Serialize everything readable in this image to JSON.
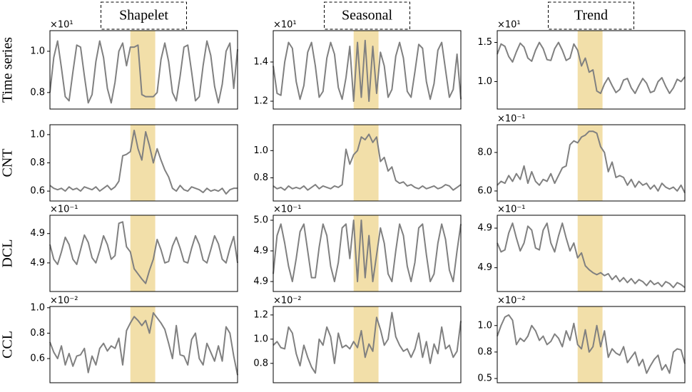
{
  "column_titles": [
    "Shapelet",
    "Seasonal",
    "Trend"
  ],
  "row_labels": [
    "Time series",
    "CNT",
    "DCL",
    "CCL"
  ],
  "chart_data": [
    {
      "type": "line",
      "offset_label": "×10¹",
      "color": "#808080",
      "highlight_color": "#f2dfa9",
      "xlim": [
        0,
        49
      ],
      "highlight": [
        21,
        27.5
      ],
      "ylim": [
        0.72,
        1.1
      ],
      "yticks": [
        0.8,
        {
          "value": 1.0,
          "label": "1.0"
        }
      ],
      "values": [
        0.8,
        0.97,
        1.05,
        0.92,
        0.78,
        0.76,
        0.9,
        1.03,
        1.02,
        0.88,
        0.75,
        0.79,
        0.95,
        1.05,
        0.97,
        0.82,
        0.75,
        0.85,
        1.0,
        1.04,
        0.93,
        1.02,
        1.02,
        1.03,
        0.79,
        0.78,
        0.78,
        0.78,
        0.8,
        0.96,
        1.04,
        0.95,
        0.8,
        0.76,
        0.88,
        1.02,
        1.03,
        0.9,
        0.76,
        0.78,
        0.93,
        1.05,
        0.98,
        0.83,
        0.75,
        0.84,
        1.0,
        1.04,
        0.82,
        1.01
      ]
    },
    {
      "type": "line",
      "offset_label": "×10¹",
      "color": "#808080",
      "highlight_color": "#f2dfa9",
      "xlim": [
        0,
        49
      ],
      "highlight": [
        21,
        27.5
      ],
      "ylim": [
        1.16,
        1.56
      ],
      "yticks": [
        1.2,
        1.4
      ],
      "values": [
        1.38,
        1.24,
        1.23,
        1.4,
        1.5,
        1.47,
        1.3,
        1.21,
        1.28,
        1.45,
        1.5,
        1.38,
        1.22,
        1.25,
        1.42,
        1.5,
        1.44,
        1.27,
        1.21,
        1.32,
        1.48,
        1.2,
        1.5,
        1.22,
        1.51,
        1.2,
        1.48,
        1.24,
        1.45,
        1.38,
        1.22,
        1.26,
        1.43,
        1.5,
        1.42,
        1.25,
        1.22,
        1.35,
        1.49,
        1.47,
        1.3,
        1.21,
        1.29,
        1.46,
        1.5,
        1.36,
        1.22,
        1.26,
        1.44,
        1.21
      ]
    },
    {
      "type": "line",
      "offset_label": "×10¹",
      "color": "#808080",
      "highlight_color": "#f2dfa9",
      "xlim": [
        0,
        49
      ],
      "highlight": [
        21,
        27.5
      ],
      "ylim": [
        0.65,
        1.65
      ],
      "yticks": [
        {
          "value": 1.0,
          "label": "1.0"
        },
        1.5
      ],
      "values": [
        1.35,
        1.48,
        1.45,
        1.32,
        1.25,
        1.38,
        1.49,
        1.44,
        1.3,
        1.26,
        1.4,
        1.5,
        1.42,
        1.28,
        1.27,
        1.42,
        1.5,
        1.4,
        1.27,
        1.3,
        1.48,
        1.4,
        1.2,
        1.3,
        1.12,
        1.15,
        0.88,
        0.85,
        0.97,
        1.05,
        0.95,
        0.86,
        0.9,
        1.02,
        1.04,
        0.92,
        0.85,
        0.95,
        1.04,
        0.98,
        0.86,
        0.88,
        1.0,
        1.05,
        0.94,
        0.85,
        0.92,
        1.03,
        1.0,
        1.06
      ]
    },
    {
      "type": "line",
      "color": "#808080",
      "highlight_color": "#f2dfa9",
      "xlim": [
        0,
        49
      ],
      "highlight": [
        21,
        27.5
      ],
      "ylim": [
        0.53,
        1.07
      ],
      "yticks": [
        0.6,
        0.8,
        {
          "value": 1.0,
          "label": "1.0"
        }
      ],
      "values": [
        0.64,
        0.62,
        0.61,
        0.62,
        0.6,
        0.63,
        0.61,
        0.62,
        0.6,
        0.63,
        0.62,
        0.61,
        0.63,
        0.6,
        0.62,
        0.64,
        0.61,
        0.63,
        0.67,
        0.85,
        0.86,
        0.88,
        1.03,
        0.9,
        0.82,
        1.02,
        0.92,
        0.8,
        0.9,
        0.82,
        0.75,
        0.7,
        0.62,
        0.6,
        0.64,
        0.61,
        0.6,
        0.63,
        0.62,
        0.61,
        0.59,
        0.62,
        0.6,
        0.61,
        0.6,
        0.62,
        0.58,
        0.61,
        0.62,
        0.62
      ]
    },
    {
      "type": "line",
      "color": "#808080",
      "highlight_color": "#f2dfa9",
      "xlim": [
        0,
        49
      ],
      "highlight": [
        21,
        27.5
      ],
      "ylim": [
        0.63,
        1.19
      ],
      "yticks": [
        0.8,
        {
          "value": 1.0,
          "label": "1.0"
        }
      ],
      "values": [
        0.74,
        0.72,
        0.73,
        0.71,
        0.74,
        0.72,
        0.73,
        0.72,
        0.74,
        0.71,
        0.73,
        0.75,
        0.72,
        0.74,
        0.73,
        0.72,
        0.74,
        0.73,
        0.75,
        1.01,
        0.9,
        0.97,
        1.0,
        1.1,
        1.08,
        1.12,
        1.06,
        1.1,
        0.92,
        0.95,
        0.85,
        0.88,
        0.78,
        0.76,
        0.77,
        0.74,
        0.75,
        0.73,
        0.72,
        0.74,
        0.72,
        0.73,
        0.74,
        0.72,
        0.73,
        0.75,
        0.74,
        0.71,
        0.73,
        0.75
      ]
    },
    {
      "type": "line",
      "offset_label": "×10⁻¹",
      "color": "#808080",
      "highlight_color": "#f2dfa9",
      "xlim": [
        0,
        49
      ],
      "highlight": [
        21,
        27.5
      ],
      "ylim": [
        5.48,
        9.44
      ],
      "yticks": [
        {
          "value": 6.0,
          "label": "6.0"
        },
        {
          "value": 8.0,
          "label": "8.0"
        }
      ],
      "values": [
        6.3,
        6.5,
        6.4,
        6.8,
        6.5,
        6.9,
        6.6,
        7.3,
        6.4,
        7.0,
        6.5,
        6.3,
        6.6,
        6.5,
        6.9,
        6.4,
        6.8,
        7.2,
        7.3,
        8.4,
        8.6,
        8.5,
        8.8,
        8.9,
        9.1,
        9.1,
        9.0,
        8.3,
        8.0,
        7.0,
        7.5,
        6.7,
        6.8,
        6.7,
        6.3,
        6.6,
        6.2,
        6.5,
        6.3,
        6.4,
        6.1,
        6.3,
        6.0,
        6.4,
        6.2,
        6.1,
        6.2,
        6.0,
        6.3,
        5.9
      ]
    },
    {
      "type": "line",
      "offset_label": "×10⁻¹",
      "color": "#808080",
      "highlight_color": "#f2dfa9",
      "xlim": [
        0,
        49
      ],
      "highlight": [
        21,
        27.5
      ],
      "ylim": [
        4.841,
        4.945
      ],
      "yticks": [
        {
          "value": 4.88,
          "label": "4.9"
        },
        {
          "value": 4.92,
          "label": "4.9"
        }
      ],
      "values": [
        4.905,
        4.885,
        4.878,
        4.895,
        4.915,
        4.905,
        4.885,
        4.878,
        4.898,
        4.918,
        4.908,
        4.887,
        4.88,
        4.897,
        4.917,
        4.905,
        4.885,
        4.89,
        4.934,
        4.936,
        4.902,
        4.895,
        4.872,
        4.865,
        4.858,
        4.852,
        4.87,
        4.885,
        4.912,
        4.898,
        4.88,
        4.882,
        4.903,
        4.915,
        4.9,
        4.882,
        4.88,
        4.9,
        4.917,
        4.905,
        4.884,
        4.88,
        4.898,
        4.917,
        4.906,
        4.885,
        4.88,
        4.9,
        4.916,
        4.88
      ]
    },
    {
      "type": "line",
      "offset_label": "×10⁻¹",
      "color": "#808080",
      "highlight_color": "#f2dfa9",
      "xlim": [
        0,
        49
      ],
      "highlight": [
        21,
        27.5
      ],
      "ylim": [
        4.887,
        4.9865
      ],
      "yticks": [
        {
          "value": 4.9,
          "label": "4.9"
        },
        {
          "value": 4.94,
          "label": "4.9"
        },
        {
          "value": 4.98,
          "label": "5.0"
        }
      ],
      "values": [
        4.91,
        4.96,
        4.975,
        4.95,
        4.92,
        4.9,
        4.93,
        4.965,
        4.975,
        4.94,
        4.905,
        4.905,
        4.945,
        4.975,
        4.96,
        4.92,
        4.9,
        4.925,
        4.97,
        4.975,
        4.93,
        4.98,
        4.9,
        4.98,
        4.905,
        4.96,
        4.9,
        4.935,
        4.97,
        4.95,
        4.91,
        4.9,
        4.94,
        4.975,
        4.96,
        4.92,
        4.9,
        4.925,
        4.97,
        4.975,
        4.935,
        4.9,
        4.91,
        4.95,
        4.975,
        4.955,
        4.915,
        4.9,
        4.94,
        4.975
      ]
    },
    {
      "type": "line",
      "offset_label": "×10⁻¹",
      "color": "#808080",
      "highlight_color": "#f2dfa9",
      "xlim": [
        0,
        49
      ],
      "highlight": [
        21,
        27.5
      ],
      "ylim": [
        4.856,
        4.933
      ],
      "yticks": [
        {
          "value": 4.88,
          "label": "4.9"
        },
        {
          "value": 4.92,
          "label": "4.9"
        }
      ],
      "values": [
        4.905,
        4.896,
        4.898,
        4.915,
        4.925,
        4.91,
        4.897,
        4.905,
        4.922,
        4.918,
        4.9,
        4.898,
        4.918,
        4.925,
        4.905,
        4.896,
        4.912,
        4.925,
        4.91,
        4.897,
        4.905,
        4.89,
        4.895,
        4.882,
        4.878,
        4.875,
        4.873,
        4.875,
        4.872,
        4.874,
        4.868,
        4.872,
        4.866,
        4.87,
        4.865,
        4.869,
        4.864,
        4.868,
        4.866,
        4.862,
        4.867,
        4.863,
        4.865,
        4.861,
        4.866,
        4.864,
        4.86,
        4.865,
        4.863,
        4.86
      ]
    },
    {
      "type": "line",
      "offset_label": "×10⁻²",
      "color": "#808080",
      "highlight_color": "#f2dfa9",
      "xlim": [
        0,
        49
      ],
      "highlight": [
        21,
        27.5
      ],
      "ylim": [
        0.41,
        1.01
      ],
      "yticks": [
        0.6,
        0.8,
        {
          "value": 1.0,
          "label": "1.0"
        }
      ],
      "values": [
        0.73,
        0.65,
        0.6,
        0.7,
        0.55,
        0.64,
        0.54,
        0.62,
        0.63,
        0.68,
        0.49,
        0.62,
        0.55,
        0.68,
        0.72,
        0.66,
        0.7,
        0.68,
        0.76,
        0.55,
        0.82,
        0.88,
        0.93,
        0.9,
        0.86,
        0.9,
        0.8,
        0.96,
        0.92,
        0.88,
        0.83,
        0.72,
        0.6,
        0.86,
        0.63,
        0.62,
        0.55,
        0.75,
        0.8,
        0.6,
        0.55,
        0.72,
        0.65,
        0.58,
        0.7,
        0.58,
        0.85,
        0.8,
        0.62,
        0.47
      ]
    },
    {
      "type": "line",
      "offset_label": "×10⁻²",
      "color": "#808080",
      "highlight_color": "#f2dfa9",
      "xlim": [
        0,
        49
      ],
      "highlight": [
        21,
        27.5
      ],
      "ylim": [
        0.64,
        1.27
      ],
      "yticks": [
        0.8,
        {
          "value": 1.0,
          "label": "1.0"
        },
        1.2
      ],
      "values": [
        0.95,
        0.98,
        0.93,
        0.92,
        1.1,
        1.05,
        0.88,
        0.78,
        0.95,
        0.85,
        0.77,
        0.72,
        1.0,
        0.95,
        1.1,
        1.02,
        0.8,
        1.05,
        0.93,
        0.95,
        0.92,
        0.98,
        0.93,
        1.07,
        0.85,
        0.96,
        0.9,
        1.18,
        1.08,
        0.95,
        1.0,
        1.22,
        1.02,
        0.95,
        0.9,
        0.92,
        0.85,
        0.92,
        1.05,
        0.85,
        0.98,
        0.8,
        0.96,
        0.88,
        1.1,
        0.92,
        0.95,
        0.85,
        0.9,
        1.15
      ]
    },
    {
      "type": "line",
      "offset_label": "×10⁻²",
      "color": "#808080",
      "highlight_color": "#f2dfa9",
      "xlim": [
        0,
        49
      ],
      "highlight": [
        21,
        27.5
      ],
      "ylim": [
        0.46,
        1.18
      ],
      "yticks": [
        0.5,
        {
          "value": 0.75,
          "label": "0.8"
        },
        {
          "value": 1.0,
          "label": "1.0"
        }
      ],
      "values": [
        0.9,
        1.0,
        1.08,
        1.1,
        1.05,
        0.82,
        0.88,
        0.85,
        0.9,
        1.0,
        0.95,
        0.86,
        0.9,
        0.82,
        0.85,
        0.92,
        0.88,
        0.8,
        0.95,
        0.86,
        1.02,
        0.82,
        0.78,
        0.96,
        0.75,
        0.8,
        1.0,
        0.8,
        0.95,
        0.7,
        0.78,
        0.74,
        0.72,
        0.8,
        0.65,
        0.7,
        0.75,
        0.62,
        0.68,
        0.55,
        0.62,
        0.68,
        0.72,
        0.58,
        0.63,
        0.55,
        0.75,
        0.78,
        0.77,
        0.64
      ]
    }
  ]
}
